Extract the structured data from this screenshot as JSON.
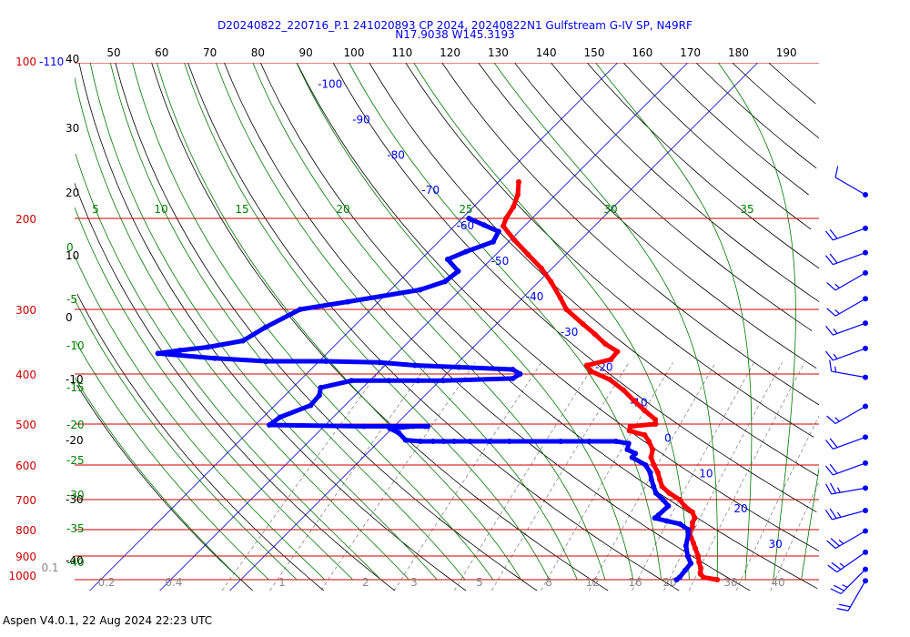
{
  "header": {
    "line1": "D20240822_220716_P.1 241020893 CP 2024, 20240822N1 Gulfstream G-IV SP, N49RF",
    "line2": "N17.9038 W145.3193"
  },
  "footer": {
    "text": "Aspen V4.0.1, 22 Aug 2024  22:23 UTC"
  },
  "chart_data": {
    "type": "skew-t",
    "colors": {
      "temperature": "#ff0000",
      "dewpoint": "#0000ff",
      "isobar": "#cc0000",
      "isotherm": "#0000cc",
      "dry_adiabat": "#000000",
      "moist_adiabat": "#007700",
      "mixing_ratio": "#888888"
    },
    "pressure_labels": [
      {
        "p": 100,
        "label": "100"
      },
      {
        "p": 100,
        "label": "-110",
        "color": "#0000ff"
      },
      {
        "p": 200,
        "label": "200"
      },
      {
        "p": 300,
        "label": "300"
      },
      {
        "p": 400,
        "label": "400"
      },
      {
        "p": 500,
        "label": "500"
      },
      {
        "p": 600,
        "label": "600"
      },
      {
        "p": 700,
        "label": "700"
      },
      {
        "p": 800,
        "label": "800"
      },
      {
        "p": 900,
        "label": "900"
      },
      {
        "p": 1000,
        "label": "1000"
      }
    ],
    "top_scale_labels": [
      "50",
      "60",
      "70",
      "80",
      "90",
      "100",
      "110",
      "120",
      "130",
      "140",
      "150",
      "160",
      "170",
      "180",
      "190"
    ],
    "left_black_labels": [
      "40",
      "30",
      "20",
      "10",
      "0",
      "-10",
      "-20",
      "-30",
      "-40"
    ],
    "isotherm_labels": [
      "-100",
      "-90",
      "-80",
      "-70",
      "-60",
      "-50",
      "-40",
      "-30",
      "-20",
      "-10",
      "0",
      "10",
      "20",
      "30"
    ],
    "moist_adiabat_labels": [
      "5",
      "10",
      "15",
      "20",
      "25",
      "30",
      "35"
    ],
    "left_green_labels": [
      "0",
      "-5",
      "-10",
      "-15",
      "-20",
      "-25",
      "-30",
      "-35",
      "-40"
    ],
    "mixing_ratio_labels": [
      "0.1",
      "0.2",
      "0.4",
      "1",
      "2",
      "3",
      "5",
      "8",
      "12",
      "16",
      "20",
      "30",
      "40"
    ],
    "temperature": [
      {
        "p": 1000,
        "t": 28.0
      },
      {
        "p": 990,
        "t": 25.7
      },
      {
        "p": 975,
        "t": 24.8
      },
      {
        "p": 950,
        "t": 24.0
      },
      {
        "p": 925,
        "t": 22.9
      },
      {
        "p": 900,
        "t": 21.9
      },
      {
        "p": 870,
        "t": 20.4
      },
      {
        "p": 850,
        "t": 19.4
      },
      {
        "p": 830,
        "t": 18.3
      },
      {
        "p": 810,
        "t": 17.3
      },
      {
        "p": 790,
        "t": 16.9
      },
      {
        "p": 775,
        "t": 16.3
      },
      {
        "p": 760,
        "t": 16.0
      },
      {
        "p": 740,
        "t": 14.8
      },
      {
        "p": 720,
        "t": 12.8
      },
      {
        "p": 700,
        "t": 11.2
      },
      {
        "p": 680,
        "t": 8.8
      },
      {
        "p": 660,
        "t": 6.8
      },
      {
        "p": 640,
        "t": 5.5
      },
      {
        "p": 620,
        "t": 4.2
      },
      {
        "p": 600,
        "t": 2.6
      },
      {
        "p": 580,
        "t": 1.1
      },
      {
        "p": 560,
        "t": 0.2
      },
      {
        "p": 540,
        "t": -1.5
      },
      {
        "p": 525,
        "t": -3.0
      },
      {
        "p": 515,
        "t": -5.8
      },
      {
        "p": 505,
        "t": -6.3
      },
      {
        "p": 500,
        "t": -3.0
      },
      {
        "p": 490,
        "t": -3.7
      },
      {
        "p": 470,
        "t": -6.6
      },
      {
        "p": 450,
        "t": -9.5
      },
      {
        "p": 430,
        "t": -12.4
      },
      {
        "p": 410,
        "t": -15.9
      },
      {
        "p": 395,
        "t": -19.8
      },
      {
        "p": 385,
        "t": -21.2
      },
      {
        "p": 375,
        "t": -18.6
      },
      {
        "p": 362,
        "t": -18.8
      },
      {
        "p": 350,
        "t": -21.6
      },
      {
        "p": 335,
        "t": -24.5
      },
      {
        "p": 320,
        "t": -27.7
      },
      {
        "p": 300,
        "t": -32.1
      },
      {
        "p": 285,
        "t": -34.6
      },
      {
        "p": 265,
        "t": -38.3
      },
      {
        "p": 250,
        "t": -41.5
      },
      {
        "p": 235,
        "t": -45.4
      },
      {
        "p": 220,
        "t": -49.5
      },
      {
        "p": 207,
        "t": -53.0
      },
      {
        "p": 200,
        "t": -53.7
      },
      {
        "p": 190,
        "t": -54.3
      },
      {
        "p": 180,
        "t": -55.4
      },
      {
        "p": 170,
        "t": -57.1
      }
    ],
    "dewpoint": [
      {
        "p": 1000,
        "t": 22.2
      },
      {
        "p": 990,
        "t": 22.3
      },
      {
        "p": 960,
        "t": 22.1
      },
      {
        "p": 930,
        "t": 21.9
      },
      {
        "p": 900,
        "t": 20.4
      },
      {
        "p": 860,
        "t": 18.7
      },
      {
        "p": 820,
        "t": 17.5
      },
      {
        "p": 800,
        "t": 16.7
      },
      {
        "p": 780,
        "t": 14.7
      },
      {
        "p": 770,
        "t": 12.4
      },
      {
        "p": 760,
        "t": 10.3
      },
      {
        "p": 750,
        "t": 10.4
      },
      {
        "p": 720,
        "t": 10.5
      },
      {
        "p": 700,
        "t": 8.8
      },
      {
        "p": 680,
        "t": 6.9
      },
      {
        "p": 660,
        "t": 5.6
      },
      {
        "p": 640,
        "t": 4.3
      },
      {
        "p": 620,
        "t": 3.1
      },
      {
        "p": 600,
        "t": 1.4
      },
      {
        "p": 580,
        "t": -1.6
      },
      {
        "p": 570,
        "t": -1.7
      },
      {
        "p": 560,
        "t": -3.4
      },
      {
        "p": 545,
        "t": -4.1
      },
      {
        "p": 540,
        "t": -6.2
      },
      {
        "p": 540,
        "t": -10.0
      },
      {
        "p": 540,
        "t": -14.1
      },
      {
        "p": 540,
        "t": -21.4
      },
      {
        "p": 540,
        "t": -24.2
      },
      {
        "p": 540,
        "t": -27.0
      },
      {
        "p": 540,
        "t": -29.3
      },
      {
        "p": 540,
        "t": -30.8
      },
      {
        "p": 540,
        "t": -32.3
      },
      {
        "p": 540,
        "t": -34.1
      },
      {
        "p": 537,
        "t": -36.4
      },
      {
        "p": 520,
        "t": -38.4
      },
      {
        "p": 510,
        "t": -40.3
      },
      {
        "p": 505,
        "t": -37.3
      },
      {
        "p": 505,
        "t": -35.6
      },
      {
        "p": 505,
        "t": -35.2
      },
      {
        "p": 505,
        "t": -38.2
      },
      {
        "p": 505,
        "t": -39.2
      },
      {
        "p": 505,
        "t": -40.6
      },
      {
        "p": 505,
        "t": -44.3
      },
      {
        "p": 502,
        "t": -58.0
      },
      {
        "p": 485,
        "t": -57.6
      },
      {
        "p": 460,
        "t": -54.9
      },
      {
        "p": 440,
        "t": -55.1
      },
      {
        "p": 425,
        "t": -56.0
      },
      {
        "p": 412,
        "t": -52.6
      },
      {
        "p": 412,
        "t": -47.3
      },
      {
        "p": 412,
        "t": -43.1
      },
      {
        "p": 412,
        "t": -39.5
      },
      {
        "p": 408,
        "t": -29.9
      },
      {
        "p": 400,
        "t": -29.5
      },
      {
        "p": 392,
        "t": -31.2
      },
      {
        "p": 388,
        "t": -39.2
      },
      {
        "p": 385,
        "t": -45.7
      },
      {
        "p": 380,
        "t": -51.2
      },
      {
        "p": 378,
        "t": -59.0
      },
      {
        "p": 378,
        "t": -67.5
      },
      {
        "p": 373,
        "t": -75.3
      },
      {
        "p": 365,
        "t": -84.1
      },
      {
        "p": 360,
        "t": -81.4
      },
      {
        "p": 355,
        "t": -77.9
      },
      {
        "p": 345,
        "t": -73.8
      },
      {
        "p": 325,
        "t": -72.5
      },
      {
        "p": 300,
        "t": -70.1
      },
      {
        "p": 290,
        "t": -64.4
      },
      {
        "p": 275,
        "t": -55.8
      },
      {
        "p": 265,
        "t": -53.4
      },
      {
        "p": 253,
        "t": -53.0
      },
      {
        "p": 240,
        "t": -56.2
      },
      {
        "p": 232,
        "t": -54.7
      },
      {
        "p": 222,
        "t": -52.2
      },
      {
        "p": 212,
        "t": -52.9
      },
      {
        "p": 206,
        "t": -55.9
      },
      {
        "p": 200,
        "t": -59.0
      }
    ],
    "wind_barbs": [
      {
        "p": 180,
        "dir": 300,
        "kt": 10
      },
      {
        "p": 209,
        "dir": 250,
        "kt": 20
      },
      {
        "p": 233,
        "dir": 250,
        "kt": 20
      },
      {
        "p": 255,
        "dir": 240,
        "kt": 15
      },
      {
        "p": 286,
        "dir": 240,
        "kt": 15
      },
      {
        "p": 319,
        "dir": 250,
        "kt": 15
      },
      {
        "p": 357,
        "dir": 250,
        "kt": 15
      },
      {
        "p": 406,
        "dir": 280,
        "kt": 15
      },
      {
        "p": 462,
        "dir": 240,
        "kt": 15
      },
      {
        "p": 530,
        "dir": 250,
        "kt": 20
      },
      {
        "p": 595,
        "dir": 250,
        "kt": 20
      },
      {
        "p": 665,
        "dir": 260,
        "kt": 25
      },
      {
        "p": 735,
        "dir": 255,
        "kt": 25
      },
      {
        "p": 805,
        "dir": 240,
        "kt": 25
      },
      {
        "p": 885,
        "dir": 235,
        "kt": 25
      },
      {
        "p": 955,
        "dir": 225,
        "kt": 25
      },
      {
        "p": 1005,
        "dir": 210,
        "kt": 20
      }
    ]
  }
}
